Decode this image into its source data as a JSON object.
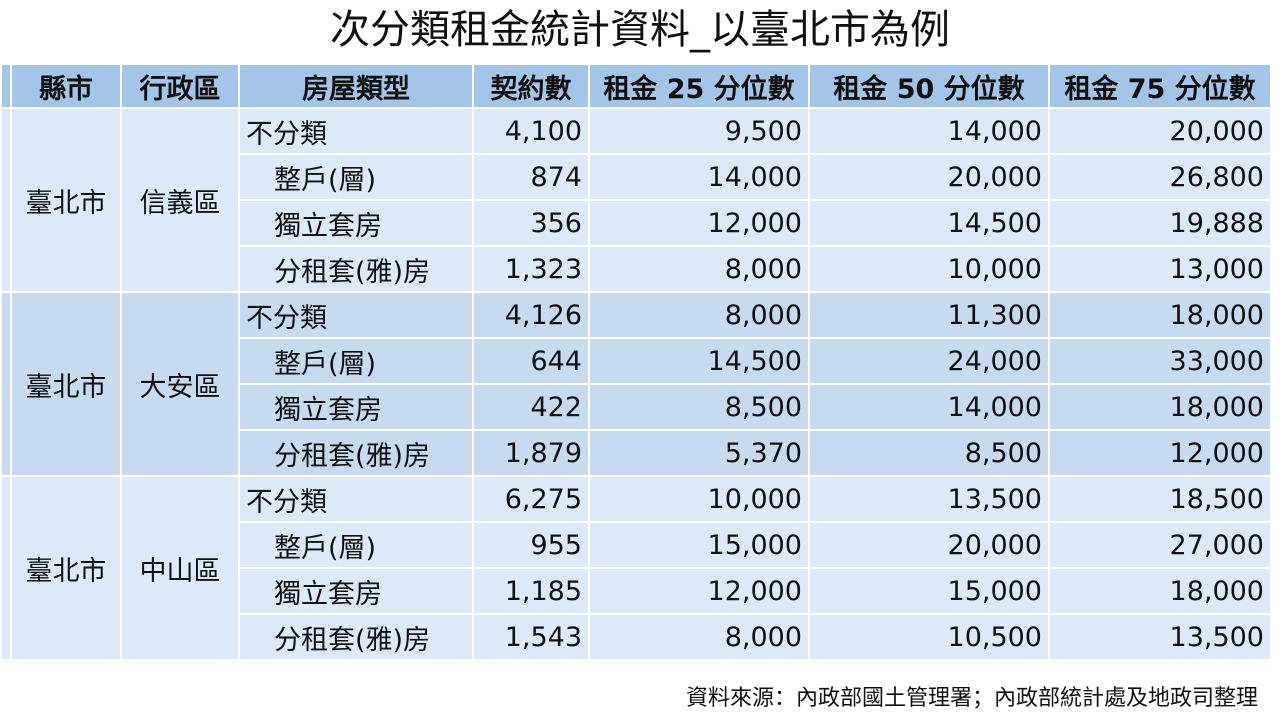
{
  "title": "次分類租金統計資料_以臺北市為例",
  "table": {
    "header": [
      "縣市",
      "行政區",
      "房屋類型",
      "契約數",
      "租金 25 分位數",
      "租金 50 分位數",
      "租金 75 分位數"
    ],
    "groups": [
      {
        "city": "臺北市",
        "district": "信義區",
        "rows": [
          [
            "不分類",
            "4,100",
            "9,500",
            "14,000",
            "20,000"
          ],
          [
            "整戶(層)",
            "874",
            "14,000",
            "20,000",
            "26,800"
          ],
          [
            "獨立套房",
            "356",
            "12,000",
            "14,500",
            "19,888"
          ],
          [
            "分租套(雅)房",
            "1,323",
            "8,000",
            "10,000",
            "13,000"
          ]
        ]
      },
      {
        "city": "臺北市",
        "district": "大安區",
        "rows": [
          [
            "不分類",
            "4,126",
            "8,000",
            "11,300",
            "18,000"
          ],
          [
            "整戶(層)",
            "644",
            "14,500",
            "24,000",
            "33,000"
          ],
          [
            "獨立套房",
            "422",
            "8,500",
            "14,000",
            "18,000"
          ],
          [
            "分租套(雅)房",
            "1,879",
            "5,370",
            "8,500",
            "12,000"
          ]
        ]
      },
      {
        "city": "臺北市",
        "district": "中山區",
        "rows": [
          [
            "不分類",
            "6,275",
            "10,000",
            "13,500",
            "18,500"
          ],
          [
            "整戶(層)",
            "955",
            "15,000",
            "20,000",
            "27,000"
          ],
          [
            "獨立套房",
            "1,185",
            "12,000",
            "15,000",
            "18,000"
          ],
          [
            "分租套(雅)房",
            "1,543",
            "8,000",
            "10,500",
            "13,500"
          ]
        ]
      }
    ]
  },
  "source": "資料來源：內政部國土管理署；內政部統計處及地政司整理"
}
